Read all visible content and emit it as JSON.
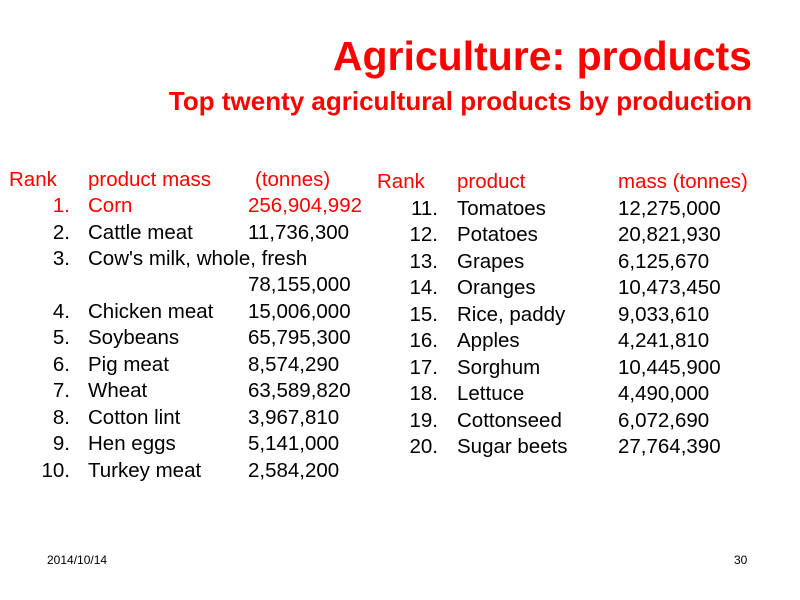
{
  "title": "Agriculture: products",
  "subtitle": "Top twenty agricultural products by production",
  "left_table": {
    "headers": {
      "rank": "Rank",
      "product": "product mass",
      "mass": "(tonnes)"
    },
    "rows": [
      {
        "rank": "1.",
        "product": "Corn",
        "mass": "256,904,992",
        "highlight": true
      },
      {
        "rank": "2.",
        "product": "Cattle meat",
        "mass": "11,736,300"
      },
      {
        "rank": "3.",
        "product": "Cow's milk, whole, fresh",
        "mass": "78,155,000"
      },
      {
        "rank": "4.",
        "product": "Chicken meat",
        "mass": "15,006,000"
      },
      {
        "rank": "5.",
        "product": "Soybeans",
        "mass": "65,795,300"
      },
      {
        "rank": "6.",
        "product": "Pig meat",
        "mass": "8,574,290"
      },
      {
        "rank": "7.",
        "product": "Wheat",
        "mass": "63,589,820"
      },
      {
        "rank": "8.",
        "product": "Cotton lint",
        "mass": "3,967,810"
      },
      {
        "rank": "9.",
        "product": "Hen eggs",
        "mass": "5,141,000"
      },
      {
        "rank": "10.",
        "product": "Turkey meat",
        "mass": "2,584,200"
      }
    ]
  },
  "right_table": {
    "headers": {
      "rank": "Rank",
      "product": "product",
      "mass": "mass (tonnes)"
    },
    "rows": [
      {
        "rank": "11.",
        "product": "Tomatoes",
        "mass": "12,275,000"
      },
      {
        "rank": "12.",
        "product": "Potatoes",
        "mass": "20,821,930"
      },
      {
        "rank": "13.",
        "product": "Grapes",
        "mass": "6,125,670"
      },
      {
        "rank": "14.",
        "product": "Oranges",
        "mass": "10,473,450"
      },
      {
        "rank": "15.",
        "product": "Rice, paddy",
        "mass": "9,033,610"
      },
      {
        "rank": "16.",
        "product": "Apples",
        "mass": "4,241,810"
      },
      {
        "rank": "17.",
        "product": "Sorghum",
        "mass": "10,445,900"
      },
      {
        "rank": "18.",
        "product": "Lettuce",
        "mass": "4,490,000"
      },
      {
        "rank": "19.",
        "product": "Cottonseed",
        "mass": "6,072,690"
      },
      {
        "rank": "20.",
        "product": "Sugar beets",
        "mass": "27,764,390"
      }
    ]
  },
  "footer": {
    "date": "2014/10/14",
    "page": "30"
  },
  "colors": {
    "accent": "#ff0000",
    "text": "#000000",
    "background": "#ffffff"
  }
}
